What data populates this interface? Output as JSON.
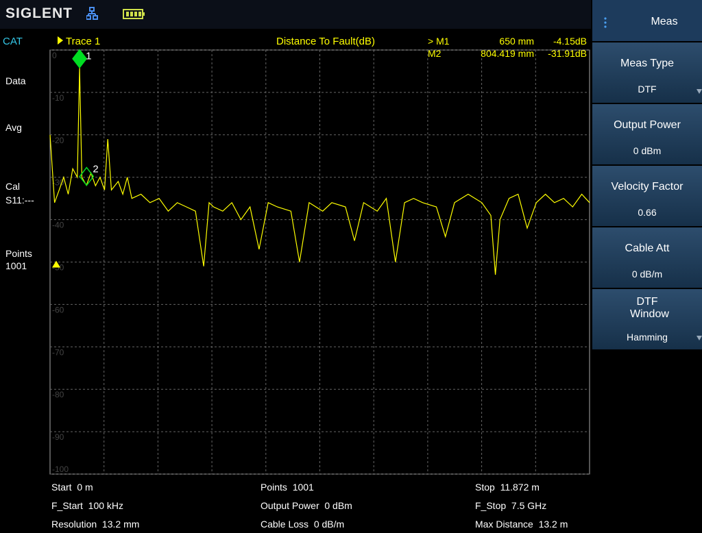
{
  "header": {
    "brand": "SIGLENT"
  },
  "left_panel": {
    "mode": "CAT",
    "items": [
      "Data",
      "Avg",
      "Cal",
      "S11:---",
      "Points",
      "1001"
    ]
  },
  "chart_data": {
    "type": "line",
    "title": "Distance To Fault(dB)",
    "x": [
      0,
      0.1,
      0.2,
      0.3,
      0.4,
      0.5,
      0.6,
      0.65,
      0.7,
      0.8,
      0.9,
      1.0,
      1.1,
      1.2,
      1.27,
      1.35,
      1.5,
      1.6,
      1.7,
      1.8,
      2.0,
      2.2,
      2.4,
      2.6,
      2.8,
      3.0,
      3.2,
      3.38,
      3.5,
      3.6,
      3.8,
      4.0,
      4.2,
      4.4,
      4.6,
      4.8,
      5.0,
      5.3,
      5.49,
      5.7,
      6.0,
      6.2,
      6.5,
      6.7,
      6.9,
      7.2,
      7.4,
      7.6,
      7.8,
      8.0,
      8.2,
      8.5,
      8.7,
      8.9,
      9.2,
      9.5,
      9.7,
      9.8,
      9.9,
      10.1,
      10.3,
      10.5,
      10.7,
      10.9,
      11.1,
      11.3,
      11.5,
      11.7,
      11.872
    ],
    "series": [
      {
        "name": "Trace 1",
        "color": "#ffff00",
        "values": [
          -20,
          -36,
          -33,
          -30,
          -34,
          -28,
          -30,
          -4.15,
          -30,
          -31.91,
          -29,
          -32,
          -30,
          -33,
          -21,
          -33,
          -31,
          -34,
          -30,
          -35,
          -34,
          -36,
          -35,
          -38,
          -36,
          -37,
          -38,
          -51,
          -36,
          -37,
          -38,
          -36,
          -40,
          -37,
          -47,
          -36,
          -37,
          -38,
          -50,
          -36,
          -38,
          -36,
          -37,
          -45,
          -36,
          -38,
          -35,
          -50,
          -36,
          -35,
          -36,
          -37,
          -44,
          -36,
          -34,
          -36,
          -39,
          -53,
          -40,
          -35,
          -34,
          -42,
          -36,
          -34,
          -36,
          -35,
          -37,
          -34,
          -36
        ]
      }
    ],
    "xlim": [
      0,
      11.872
    ],
    "ylim": [
      -100,
      0
    ],
    "yticks": [
      0,
      -10,
      -20,
      -30,
      -40,
      -50,
      -60,
      -70,
      -80,
      -90,
      -100
    ],
    "grid": true,
    "reference_level": -50,
    "markers": [
      {
        "name": "> M1",
        "label": "1",
        "x": 0.65,
        "y": -4.15,
        "distance": "650 mm",
        "level": "-4.15dB",
        "filled": true,
        "color": "#00dd22"
      },
      {
        "name": "M2",
        "label": "2",
        "x": 0.804419,
        "y": -31.91,
        "distance": "804.419 mm",
        "level": "-31.91dB",
        "filled": false,
        "color": "#00dd22"
      }
    ]
  },
  "footer": {
    "rows": [
      [
        "Start  0 m",
        "Points  1001",
        "Stop  11.872 m"
      ],
      [
        "F_Start  100 kHz",
        "Output Power  0 dBm",
        "F_Stop  7.5 GHz"
      ],
      [
        "Resolution  13.2 mm",
        "Cable Loss  0 dB/m",
        "Max Distance  13.2 m"
      ]
    ]
  },
  "menu": {
    "title": "Meas",
    "buttons": [
      {
        "label": "Meas Type",
        "value": "DTF"
      },
      {
        "label": "Output Power",
        "value": "0 dBm"
      },
      {
        "label": "Velocity Factor",
        "value": "0.66"
      },
      {
        "label": "Cable Att",
        "value": "0 dB/m"
      },
      {
        "label": "DTF Window",
        "value": "Hamming"
      }
    ]
  }
}
